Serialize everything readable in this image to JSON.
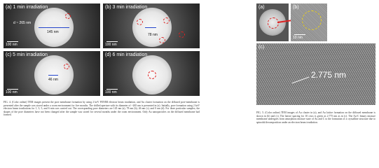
{
  "figure4": {
    "panels": [
      {
        "label": "(a) 1 min irradiation",
        "scale": "100 nm",
        "notes": [
          "d ~ 265 nm",
          "145 nm"
        ]
      },
      {
        "label": "(b) 3 min irradiation",
        "scale": "100 nm",
        "notes": [
          "78 nm"
        ]
      },
      {
        "label": "(c) 5 min irradiation",
        "scale": "100 nm",
        "notes": [
          "46 nm"
        ]
      },
      {
        "label": "(d) 6 min irradiation",
        "scale": "100 nm",
        "notes": []
      }
    ],
    "caption": "FIG. 4. (Color online) TEM images present the pore membrane formation by using 2 keV FENIM electron beam irradiation, and Au cluster formation on the diffused pore-membrane is presented after the sample was stored under a room environment for five months. The drilled aperture with its diameter of ~265 nm is presented in (a). Initially, pore formation using 2 keV electron beam irradiations for 1, 3, 5, and 6 min was carried out. The corresponding pore diameters are 145 nm (a), 78 nm (b), 46 nm (c), and 0 nm (d). For three particular samples, the shapes of the pore diameters have not been changed after the sample was stored for several months under the room environment. Only Au nanoparticles on the diffused membrane had formed."
  },
  "figure5": {
    "panels": [
      {
        "label": "(a)"
      },
      {
        "label": "(b)",
        "scale": "10 nm"
      },
      {
        "label": "(c)",
        "note": "2.775 nm"
      }
    ],
    "caption": "FIG. 5. (Color online) TEM images of Au cluster in (a), and Au lattice formation on the diffused membrane is shown in (b) and (c). The lattice spacing for 10 rows is given as 2.775 nm as in (c). The Au-C binary mixture membrane undergoes from amorphous mixture state of Au and C to the formation of a crystalline structure due to spinodal decomposition under an electron beam irradiation."
  }
}
